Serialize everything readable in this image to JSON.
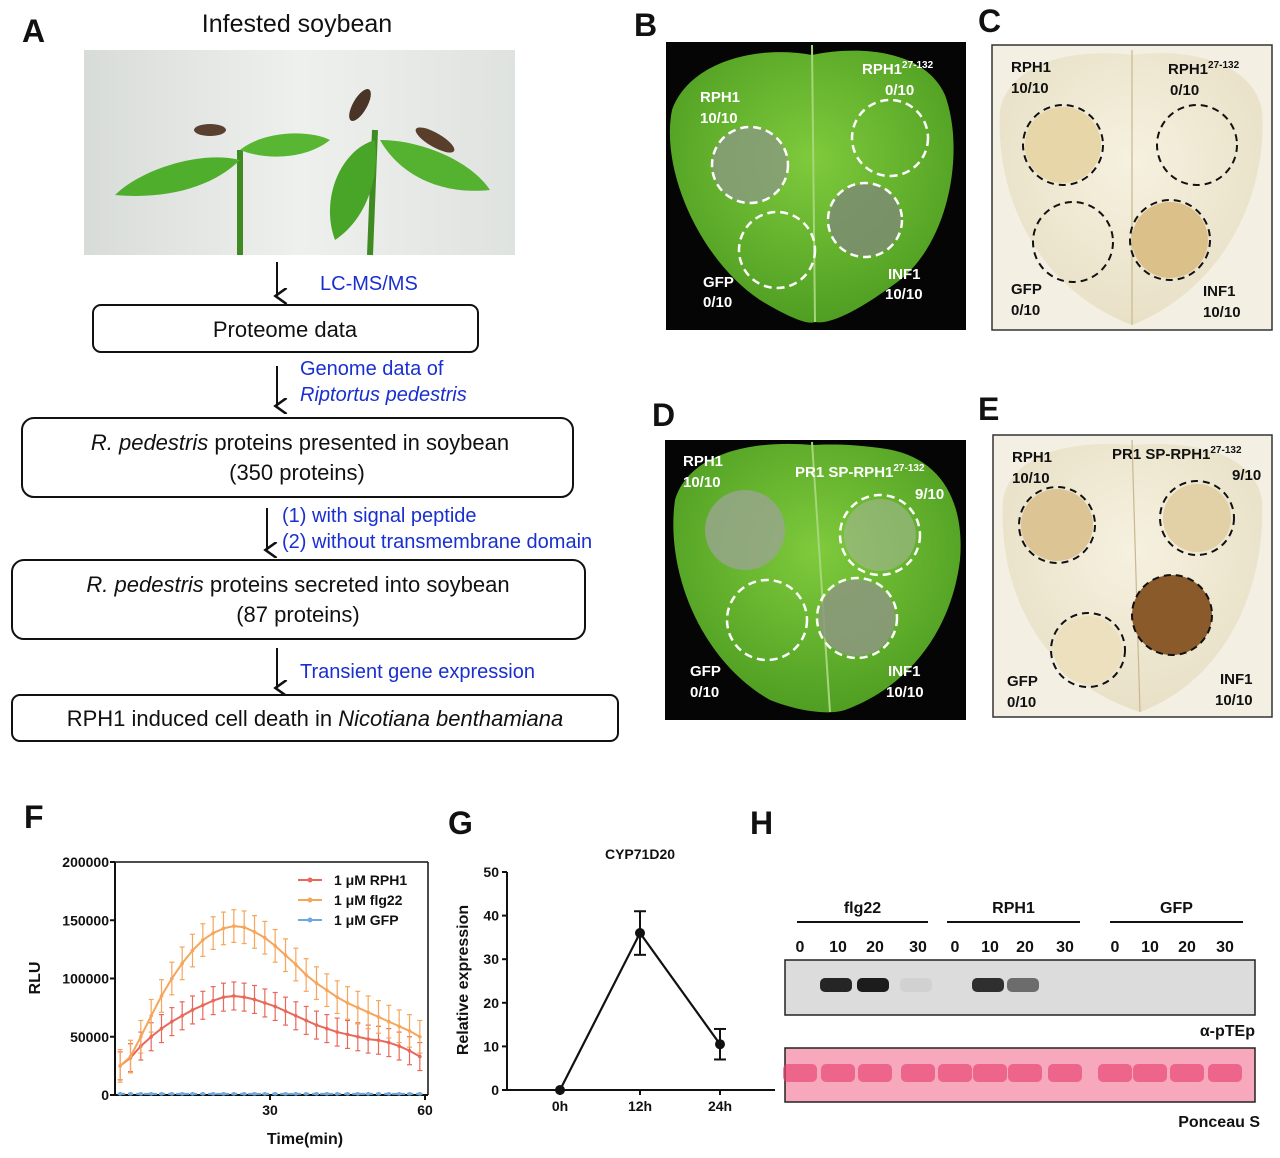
{
  "panel_labels": {
    "a": "A",
    "b": "B",
    "c": "C",
    "d": "D",
    "e": "E",
    "f": "F",
    "g": "G",
    "h": "H"
  },
  "panel_a": {
    "photo_title": "Infested soybean",
    "step1_method": "LC-MS/MS",
    "box1": "Proteome data",
    "step2_method_line1": "Genome data of",
    "step2_method_line2": "Riptortus pedestris",
    "box2_italic": "R. pedestris",
    "box2_rest": " proteins presented in soybean",
    "box2_line2": "(350 proteins)",
    "step3_line1": "(1)  with signal peptide",
    "step3_line2": "(2)  without transmembrane domain",
    "box3_italic": "R. pedestris",
    "box3_rest": " proteins secreted into soybean",
    "box3_line2": "(87 proteins)",
    "step4_method": "Transient gene expression",
    "box4_plain": "RPH1 induced cell death in ",
    "box4_italic": "Nicotiana benthamiana"
  },
  "panel_b": {
    "rph1": "RPH1",
    "rph1_score": "10/10",
    "trunc": "RPH1",
    "trunc_sup": "27-132",
    "trunc_score": "0/10",
    "gfp": "GFP",
    "gfp_score": "0/10",
    "inf1": "INF1",
    "inf1_score": "10/10"
  },
  "panel_c": {
    "rph1": "RPH1",
    "rph1_score": "10/10",
    "trunc": "RPH1",
    "trunc_sup": "27-132",
    "trunc_score": "0/10",
    "gfp": "GFP",
    "gfp_score": "0/10",
    "inf1": "INF1",
    "inf1_score": "10/10"
  },
  "panel_d": {
    "rph1": "RPH1",
    "rph1_score": "10/10",
    "sp": "PR1 SP-RPH1",
    "sp_sup": "27-132",
    "sp_score": "9/10",
    "gfp": "GFP",
    "gfp_score": "0/10",
    "inf1": "INF1",
    "inf1_score": "10/10"
  },
  "panel_e": {
    "rph1": "RPH1",
    "rph1_score": "10/10",
    "sp": "PR1 SP-RPH1",
    "sp_sup": "27-132",
    "sp_score": "9/10",
    "gfp": "GFP",
    "gfp_score": "0/10",
    "inf1": "INF1",
    "inf1_score": "10/10"
  },
  "chart_data": [
    {
      "type": "line",
      "panel": "F",
      "xlabel": "Time(min)",
      "ylabel": "RLU",
      "xlim": [
        0,
        60
      ],
      "ylim": [
        0,
        200000
      ],
      "xticks": [
        "30",
        "60"
      ],
      "yticks": [
        "0",
        "50000",
        "100000",
        "150000",
        "200000"
      ],
      "legend_placement": "top-right",
      "x": [
        1,
        3,
        5,
        7,
        9,
        11,
        13,
        15,
        17,
        19,
        21,
        23,
        25,
        27,
        29,
        31,
        33,
        35,
        37,
        39,
        41,
        43,
        45,
        47,
        49,
        51,
        53,
        55,
        57,
        59
      ],
      "series": [
        {
          "name": "1 μM RPH1",
          "color": "#e8685a",
          "error": 12000,
          "values": [
            25000,
            32000,
            42000,
            50000,
            57000,
            63000,
            68000,
            73000,
            77000,
            81000,
            84000,
            85000,
            84000,
            82000,
            79000,
            76000,
            72000,
            68000,
            64000,
            60000,
            57000,
            54000,
            52000,
            50000,
            48000,
            47000,
            45000,
            42000,
            38000,
            33000
          ]
        },
        {
          "name": "1 μM flg22",
          "color": "#f5a65b",
          "error": 14000,
          "values": [
            25000,
            33000,
            50000,
            68000,
            85000,
            100000,
            113000,
            124000,
            133000,
            139000,
            143000,
            145000,
            144000,
            140000,
            135000,
            128000,
            120000,
            112000,
            103000,
            96000,
            90000,
            84000,
            79000,
            75000,
            71000,
            67000,
            63000,
            59000,
            55000,
            50000
          ]
        },
        {
          "name": "1 μM GFP",
          "color": "#6fa8dc",
          "error": 500,
          "values": [
            1000,
            1000,
            1000,
            1000,
            1000,
            1000,
            1000,
            1000,
            1000,
            1000,
            1000,
            1000,
            1000,
            1000,
            1000,
            1000,
            1000,
            1000,
            1000,
            1000,
            1000,
            1000,
            1000,
            1000,
            1000,
            1000,
            1000,
            1000,
            1000,
            1000
          ]
        }
      ]
    },
    {
      "type": "line",
      "panel": "G",
      "title": "CYP71D20",
      "ylabel": "Relative expression",
      "xlabel": "",
      "categories": [
        "0h",
        "12h",
        "24h"
      ],
      "values": [
        0,
        36,
        10.5
      ],
      "errors": [
        0,
        5,
        3.5
      ],
      "ylim": [
        0,
        50
      ],
      "yticks": [
        "0",
        "10",
        "20",
        "30",
        "40",
        "50"
      ]
    }
  ],
  "panel_h": {
    "groups": [
      "flg22",
      "RPH1",
      "GFP"
    ],
    "lanes": [
      "0",
      "10",
      "20",
      "30",
      "0",
      "10",
      "20",
      "30",
      "0",
      "10",
      "20",
      "30"
    ],
    "band_intensity": [
      0,
      0.9,
      0.95,
      0.05,
      0,
      0.85,
      0.55,
      0,
      0,
      0,
      0,
      0
    ],
    "blot_label": "α-pTEp",
    "loading_label": "Ponceau S"
  }
}
